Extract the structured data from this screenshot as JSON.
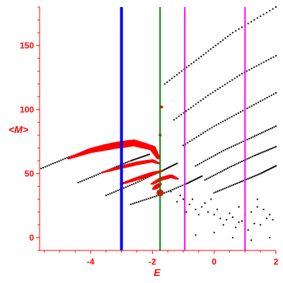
{
  "chart_data": {
    "type": "scatter",
    "title": "",
    "xlabel": "E",
    "ylabel": "<M>",
    "xlim": [
      -5.65,
      2.0
    ],
    "ylim": [
      -10,
      180
    ],
    "x_ticks": [
      -4,
      -2,
      0,
      2
    ],
    "y_ticks": [
      0,
      50,
      100,
      150
    ],
    "x_tick_labels": [
      "-4",
      "-2",
      "0",
      "2"
    ],
    "y_tick_labels": [
      "0",
      "50",
      "100",
      "150"
    ],
    "grid": false,
    "legend": "none",
    "colors": {
      "axis": "#ff0000",
      "black_points": "#000000",
      "red_points": "#ff0000",
      "blue_line": "#0000ff",
      "green_line": "#008000",
      "magenta_lines": "#ff00ff"
    },
    "vertical_lines": [
      {
        "x": -3.0,
        "color": "#0000ff"
      },
      {
        "x": -1.75,
        "color": "#008000"
      },
      {
        "x": -0.95,
        "color": "#ff00ff"
      },
      {
        "x": 1.0,
        "color": "#ff00ff"
      }
    ],
    "black_bands": [
      {
        "x": [
          -5.6,
          -4.7,
          -3.6,
          -3.2
        ],
        "y": [
          54,
          63,
          72,
          74
        ]
      },
      {
        "x": [
          -4.4,
          -3.5,
          -2.7,
          -2.1
        ],
        "y": [
          43,
          52,
          60,
          65
        ]
      },
      {
        "x": [
          -3.5,
          -2.6,
          -1.7,
          -1.2
        ],
        "y": [
          33,
          42,
          52,
          58
        ]
      },
      {
        "x": [
          -2.7,
          -1.8,
          -0.9,
          -0.4
        ],
        "y": [
          26,
          33,
          42,
          48
        ]
      },
      {
        "x": [
          -1.6,
          -0.5,
          0.6,
          2.0
        ],
        "y": [
          120,
          140,
          160,
          180
        ]
      },
      {
        "x": [
          -1.3,
          -0.2,
          0.9,
          2.0
        ],
        "y": [
          92,
          111,
          128,
          142
        ]
      },
      {
        "x": [
          -1.0,
          0.0,
          1.0,
          2.0
        ],
        "y": [
          72,
          87,
          100,
          113
        ]
      },
      {
        "x": [
          -0.6,
          0.3,
          1.2,
          2.0
        ],
        "y": [
          56,
          68,
          78,
          87
        ]
      },
      {
        "x": [
          -0.3,
          0.5,
          1.3,
          2.0
        ],
        "y": [
          45,
          55,
          64,
          71
        ]
      },
      {
        "x": [
          0.0,
          0.8,
          1.5,
          2.0
        ],
        "y": [
          35,
          43,
          50,
          56
        ]
      }
    ],
    "black_scatter": {
      "x": [
        -1.2,
        -1.0,
        -0.8,
        -0.6,
        -0.4,
        -0.2,
        0.0,
        0.2,
        0.4,
        0.6,
        0.8,
        1.0,
        1.2,
        1.4,
        1.6,
        1.8,
        -1.1,
        -0.7,
        -0.3,
        0.1,
        0.5,
        0.9,
        1.3,
        1.7,
        -0.9,
        -0.5,
        0.3,
        0.7,
        1.1,
        1.5,
        1.9,
        -0.6,
        0.0,
        0.6,
        1.2,
        1.8,
        -1.4,
        -0.1,
        0.8,
        1.4
      ],
      "y": [
        28,
        30,
        26,
        22,
        24,
        20,
        18,
        15,
        14,
        16,
        12,
        18,
        20,
        24,
        22,
        18,
        33,
        30,
        27,
        22,
        19,
        13,
        11,
        15,
        20,
        18,
        10,
        8,
        6,
        10,
        14,
        2,
        4,
        0,
        -2,
        0,
        36,
        30,
        24,
        30
      ]
    },
    "red_bands": [
      {
        "x": [
          -4.7,
          -4.0,
          -3.2,
          -2.6,
          -2.0,
          -1.8
        ],
        "y": [
          62,
          68,
          72,
          74,
          70,
          62
        ]
      },
      {
        "x": [
          -3.6,
          -3.0,
          -2.5,
          -2.0,
          -1.8
        ],
        "y": [
          51,
          55,
          58,
          60,
          58
        ]
      },
      {
        "x": [
          -3.0,
          -2.5,
          -2.0,
          -1.7
        ],
        "y": [
          42,
          46,
          50,
          52
        ]
      },
      {
        "x": [
          -2.0,
          -1.7,
          -1.4,
          -1.2
        ],
        "y": [
          42,
          46,
          48,
          46
        ]
      },
      {
        "x": [
          -1.95,
          -1.75
        ],
        "y": [
          38,
          42
        ]
      }
    ],
    "red_extra_points": {
      "x": [
        -1.75,
        -1.7,
        -1.75,
        -2.0
      ],
      "y": [
        35,
        102,
        80,
        70
      ]
    }
  }
}
